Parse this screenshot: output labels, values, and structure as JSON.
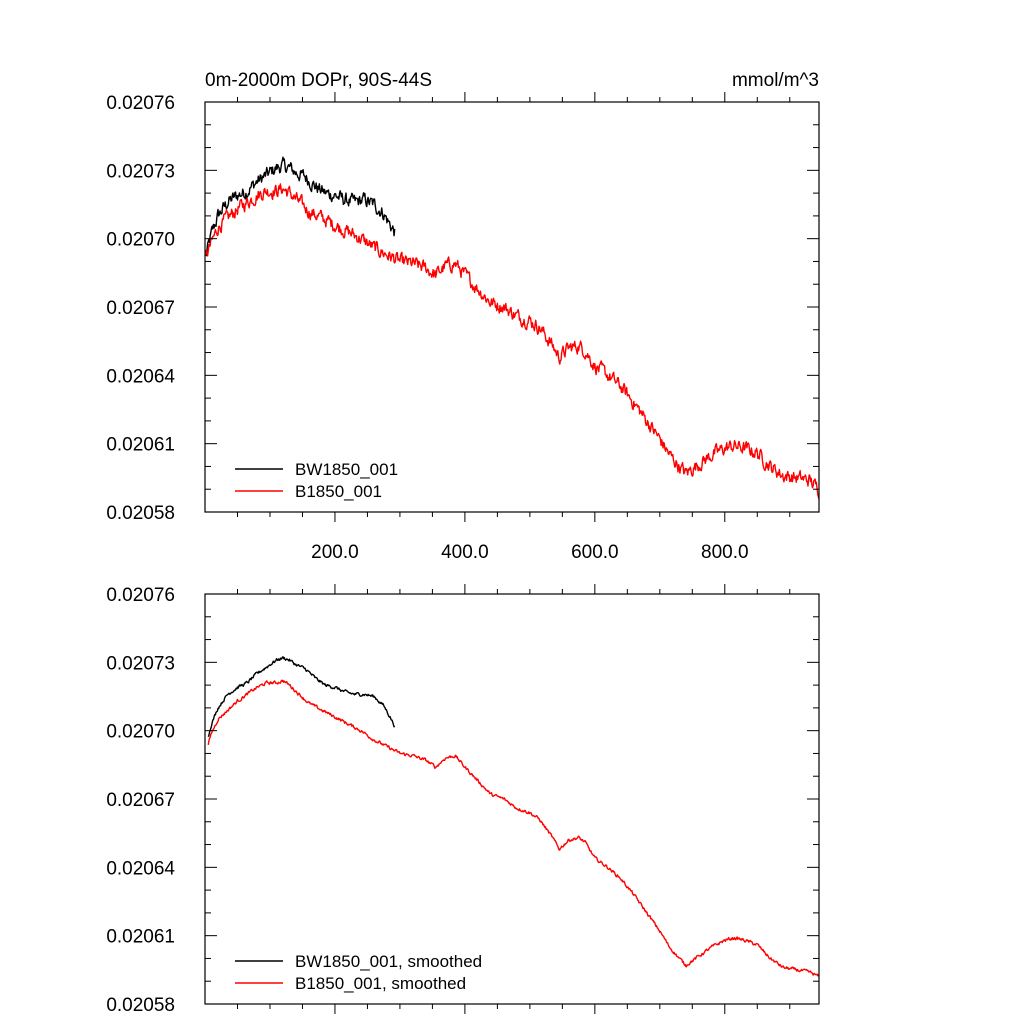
{
  "chart_data": [
    {
      "type": "line",
      "title_left": "0m-2000m DOPr, 90S-44S",
      "title_right": "mmol/m^3",
      "xlim": [
        0,
        945
      ],
      "ylim": [
        0.02058,
        0.02076
      ],
      "x_ticks": [
        200,
        400,
        600,
        800
      ],
      "x_tick_labels": [
        "200.0",
        "400.0",
        "600.0",
        "800.0"
      ],
      "y_ticks": [
        0.02058,
        0.02061,
        0.02064,
        0.02067,
        0.0207,
        0.02073,
        0.02076
      ],
      "y_tick_labels": [
        "0.02058",
        "0.02061",
        "0.02064",
        "0.02067",
        "0.02070",
        "0.02073",
        "0.02076"
      ],
      "noise": 2.5e-06,
      "series": [
        {
          "name": "BW1850_001",
          "color": "#000000",
          "x": [
            1,
            10,
            20,
            35,
            50,
            65,
            80,
            95,
            110,
            120,
            130,
            140,
            155,
            170,
            185,
            200,
            215,
            230,
            245,
            260,
            275,
            285,
            292
          ],
          "y": [
            0.020692,
            0.020702,
            0.02071,
            0.020716,
            0.020719,
            0.020721,
            0.020725,
            0.020728,
            0.020731,
            0.020732,
            0.020731,
            0.020729,
            0.020727,
            0.020723,
            0.02072,
            0.020719,
            0.020717,
            0.020716,
            0.020717,
            0.020715,
            0.020711,
            0.020706,
            0.020703
          ]
        },
        {
          "name": "B1850_001",
          "color": "#ff0000",
          "x": [
            1,
            10,
            20,
            35,
            50,
            65,
            80,
            95,
            110,
            120,
            130,
            145,
            160,
            180,
            200,
            220,
            240,
            260,
            280,
            300,
            320,
            340,
            355,
            370,
            385,
            400,
            420,
            440,
            460,
            480,
            500,
            515,
            525,
            535,
            545,
            560,
            575,
            585,
            600,
            620,
            640,
            660,
            680,
            700,
            715,
            730,
            740,
            760,
            780,
            800,
            815,
            830,
            850,
            870,
            890,
            910,
            930,
            945
          ],
          "y": [
            0.020692,
            0.020698,
            0.020705,
            0.020709,
            0.020713,
            0.020716,
            0.020719,
            0.020721,
            0.020721,
            0.020722,
            0.02072,
            0.020716,
            0.020712,
            0.020709,
            0.020706,
            0.020703,
            0.0207,
            0.020696,
            0.020693,
            0.02069,
            0.020689,
            0.020687,
            0.020684,
            0.020688,
            0.020689,
            0.020684,
            0.020678,
            0.020672,
            0.02067,
            0.020666,
            0.020664,
            0.020661,
            0.020657,
            0.020653,
            0.020648,
            0.020652,
            0.020653,
            0.020651,
            0.020644,
            0.02064,
            0.020635,
            0.020628,
            0.02062,
            0.020612,
            0.020605,
            0.0206,
            0.020597,
            0.020601,
            0.020605,
            0.020608,
            0.020609,
            0.020608,
            0.020606,
            0.0206,
            0.020596,
            0.020595,
            0.020594,
            0.02059
          ]
        }
      ]
    },
    {
      "type": "line",
      "xlim": [
        0,
        945
      ],
      "ylim": [
        0.02058,
        0.02076
      ],
      "x_ticks": [
        200,
        400,
        600,
        800
      ],
      "y_ticks": [
        0.02058,
        0.02061,
        0.02064,
        0.02067,
        0.0207,
        0.02073,
        0.02076
      ],
      "y_tick_labels": [
        "0.02058",
        "0.02061",
        "0.02064",
        "0.02067",
        "0.02070",
        "0.02073",
        "0.02076"
      ],
      "noise": 6e-07,
      "series": [
        {
          "name": "BW1850_001, smoothed",
          "color": "#000000",
          "x": [
            5,
            10,
            20,
            35,
            50,
            65,
            80,
            95,
            110,
            120,
            130,
            140,
            155,
            170,
            185,
            200,
            215,
            230,
            245,
            260,
            275,
            285,
            292
          ],
          "y": [
            0.020697,
            0.020703,
            0.02071,
            0.020716,
            0.020719,
            0.020721,
            0.020725,
            0.020728,
            0.020731,
            0.020732,
            0.020731,
            0.020729,
            0.020727,
            0.020723,
            0.02072,
            0.020719,
            0.020717,
            0.020716,
            0.020716,
            0.020715,
            0.020711,
            0.020706,
            0.020702
          ]
        },
        {
          "name": "B1850_001, smoothed",
          "color": "#ff0000",
          "x": [
            5,
            10,
            20,
            35,
            50,
            65,
            80,
            95,
            110,
            120,
            130,
            145,
            160,
            180,
            200,
            220,
            240,
            260,
            280,
            300,
            320,
            340,
            355,
            370,
            385,
            400,
            420,
            440,
            460,
            480,
            500,
            515,
            525,
            535,
            545,
            560,
            575,
            585,
            600,
            620,
            640,
            660,
            680,
            700,
            715,
            730,
            740,
            760,
            780,
            800,
            815,
            830,
            850,
            870,
            890,
            910,
            930,
            945
          ],
          "y": [
            0.020694,
            0.020699,
            0.020705,
            0.020709,
            0.020713,
            0.020716,
            0.020719,
            0.020721,
            0.020721,
            0.020722,
            0.02072,
            0.020716,
            0.020712,
            0.020709,
            0.020706,
            0.020703,
            0.0207,
            0.020696,
            0.020693,
            0.02069,
            0.020689,
            0.020687,
            0.020684,
            0.020688,
            0.020689,
            0.020684,
            0.020678,
            0.020672,
            0.02067,
            0.020666,
            0.020664,
            0.020661,
            0.020657,
            0.020653,
            0.020648,
            0.020652,
            0.020653,
            0.020651,
            0.020644,
            0.02064,
            0.020635,
            0.020628,
            0.02062,
            0.020612,
            0.020605,
            0.0206,
            0.020597,
            0.020601,
            0.020605,
            0.020608,
            0.020609,
            0.020608,
            0.020606,
            0.0206,
            0.020596,
            0.020595,
            0.020594,
            0.020592
          ]
        }
      ]
    }
  ]
}
